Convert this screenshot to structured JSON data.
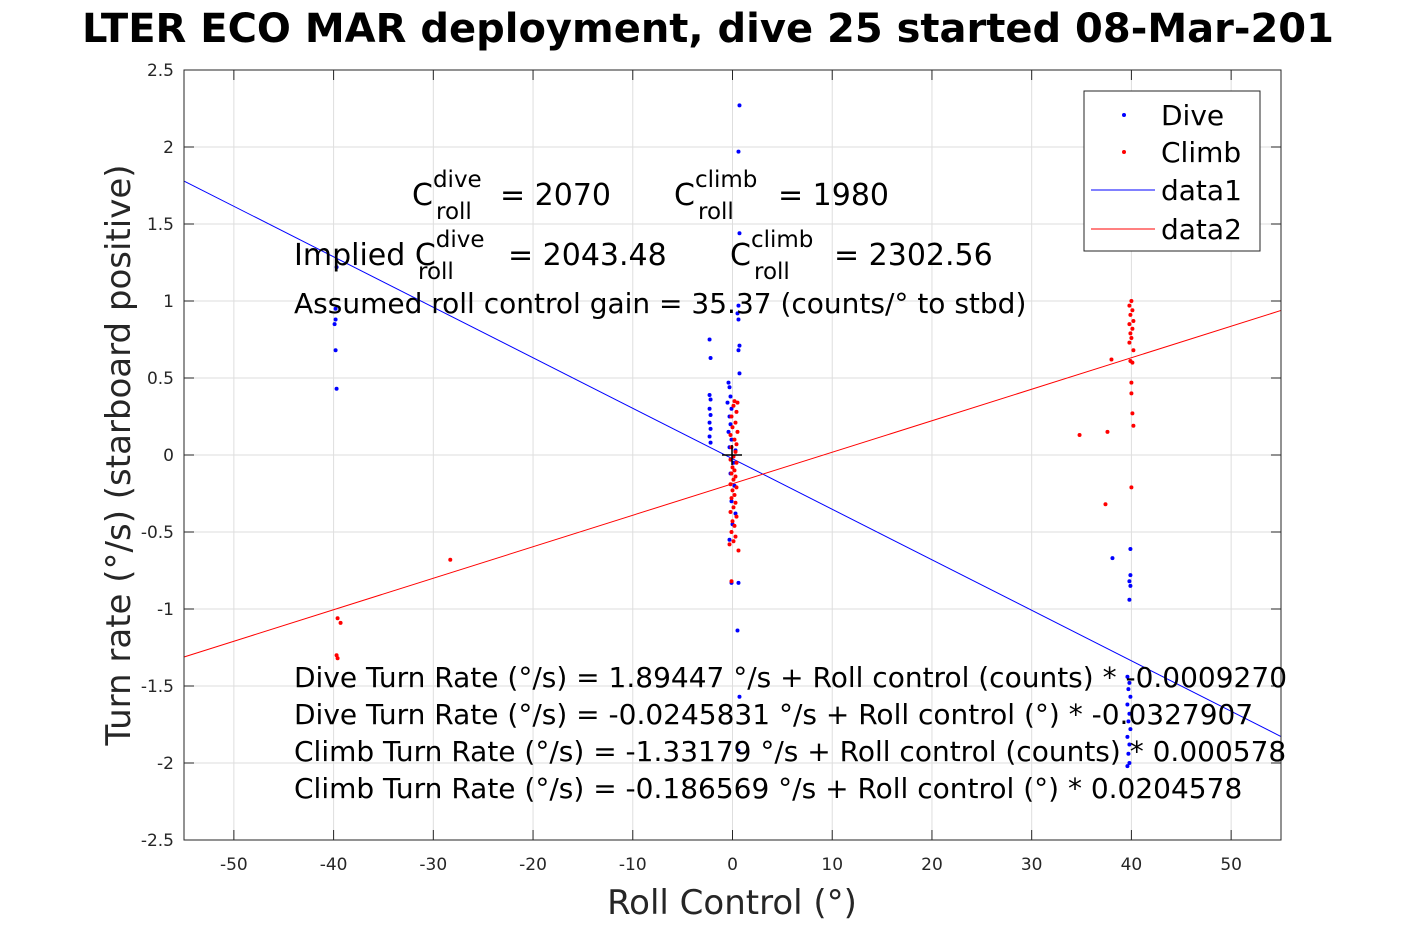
{
  "chart_data": {
    "type": "scatter",
    "title": "LTER ECO MAR deployment, dive 25 started 08-Mar-201",
    "xlabel": "Roll Control (°)",
    "ylabel": "Turn rate (°/s) (starboard positive)",
    "xlim": [
      -55,
      55
    ],
    "ylim": [
      -2.5,
      2.5
    ],
    "xticks": [
      -50,
      -40,
      -30,
      -20,
      -10,
      0,
      10,
      20,
      30,
      40,
      50
    ],
    "yticks": [
      -2.5,
      -2,
      -1.5,
      -1,
      -0.5,
      0,
      0.5,
      1,
      1.5,
      2,
      2.5
    ],
    "xtick_labels": [
      "-50",
      "-40",
      "-30",
      "-20",
      "-10",
      "0",
      "10",
      "20",
      "30",
      "40",
      "50"
    ],
    "ytick_labels": [
      "-2.5",
      "-2",
      "-1.5",
      "-1",
      "-0.5",
      "0",
      "0.5",
      "1",
      "1.5",
      "2",
      "2.5"
    ],
    "grid": true,
    "legend_position": "top-right",
    "legend": [
      "Dive",
      "Climb",
      "data1",
      "data2"
    ],
    "colors": {
      "dive": "#0000ff",
      "climb": "#ff0000",
      "axes": "#262626",
      "grid": "#dedede"
    },
    "series": [
      {
        "name": "Dive",
        "kind": "points",
        "color": "#0000ff",
        "points": [
          [
            -39.7,
            1.22
          ],
          [
            -39.8,
            0.95
          ],
          [
            -39.8,
            0.88
          ],
          [
            -39.9,
            0.85
          ],
          [
            -39.8,
            0.68
          ],
          [
            -39.7,
            0.43
          ],
          [
            0.7,
            2.27
          ],
          [
            0.6,
            1.97
          ],
          [
            0.7,
            1.44
          ],
          [
            0.6,
            0.97
          ],
          [
            0.5,
            0.92
          ],
          [
            0.6,
            0.88
          ],
          [
            0.7,
            0.71
          ],
          [
            0.6,
            0.68
          ],
          [
            0.7,
            0.53
          ],
          [
            -2.3,
            0.75
          ],
          [
            -2.2,
            0.63
          ],
          [
            -2.3,
            0.39
          ],
          [
            -2.2,
            0.36
          ],
          [
            -2.3,
            0.3
          ],
          [
            -2.2,
            0.26
          ],
          [
            -2.3,
            0.21
          ],
          [
            -2.2,
            0.17
          ],
          [
            -2.3,
            0.12
          ],
          [
            -2.2,
            0.08
          ],
          [
            -0.4,
            0.47
          ],
          [
            -0.3,
            0.44
          ],
          [
            -0.2,
            0.38
          ],
          [
            -0.5,
            0.34
          ],
          [
            -0.1,
            0.3
          ],
          [
            -0.3,
            0.25
          ],
          [
            -0.2,
            0.2
          ],
          [
            -0.4,
            0.15
          ],
          [
            -0.1,
            0.1
          ],
          [
            -0.3,
            0.05
          ],
          [
            0.3,
            0.03
          ],
          [
            0.1,
            -0.05
          ],
          [
            -0.2,
            -0.12
          ],
          [
            0.2,
            -0.2
          ],
          [
            -0.1,
            -0.3
          ],
          [
            0.3,
            -0.38
          ],
          [
            0.0,
            -0.45
          ],
          [
            -0.3,
            -0.55
          ],
          [
            -0.1,
            -0.83
          ],
          [
            0.6,
            -0.83
          ],
          [
            0.5,
            -1.14
          ],
          [
            0.7,
            -1.57
          ],
          [
            0.6,
            -1.92
          ],
          [
            38.1,
            -0.67
          ],
          [
            39.9,
            -0.61
          ],
          [
            39.9,
            -0.78
          ],
          [
            39.8,
            -0.82
          ],
          [
            39.9,
            -0.85
          ],
          [
            39.8,
            -0.94
          ],
          [
            39.6,
            -1.44
          ],
          [
            39.8,
            -1.48
          ],
          [
            39.7,
            -1.52
          ],
          [
            39.9,
            -1.57
          ],
          [
            39.6,
            -1.62
          ],
          [
            39.8,
            -1.68
          ],
          [
            39.7,
            -1.73
          ],
          [
            39.9,
            -1.78
          ],
          [
            39.6,
            -1.83
          ],
          [
            39.8,
            -1.88
          ],
          [
            39.7,
            -1.94
          ],
          [
            39.8,
            -2.0
          ],
          [
            39.6,
            -2.02
          ]
        ]
      },
      {
        "name": "Climb",
        "kind": "points",
        "color": "#ff0000",
        "points": [
          [
            -39.6,
            -1.06
          ],
          [
            -39.3,
            -1.09
          ],
          [
            -39.7,
            -1.3
          ],
          [
            -39.6,
            -1.32
          ],
          [
            -28.3,
            -0.68
          ],
          [
            0.2,
            0.35
          ],
          [
            0.5,
            0.34
          ],
          [
            0.1,
            0.32
          ],
          [
            0.4,
            0.28
          ],
          [
            -0.1,
            0.25
          ],
          [
            0.3,
            0.21
          ],
          [
            0.0,
            0.18
          ],
          [
            0.5,
            0.15
          ],
          [
            -0.2,
            0.13
          ],
          [
            0.2,
            0.1
          ],
          [
            0.4,
            0.07
          ],
          [
            -0.1,
            0.05
          ],
          [
            0.3,
            0.02
          ],
          [
            0.1,
            -0.01
          ],
          [
            -0.2,
            -0.03
          ],
          [
            0.4,
            -0.05
          ],
          [
            0.0,
            -0.08
          ],
          [
            0.2,
            -0.1
          ],
          [
            -0.1,
            -0.12
          ],
          [
            0.3,
            -0.14
          ],
          [
            0.1,
            -0.16
          ],
          [
            -0.2,
            -0.19
          ],
          [
            0.4,
            -0.21
          ],
          [
            0.0,
            -0.23
          ],
          [
            0.2,
            -0.26
          ],
          [
            -0.1,
            -0.28
          ],
          [
            0.3,
            -0.31
          ],
          [
            0.1,
            -0.34
          ],
          [
            -0.2,
            -0.37
          ],
          [
            0.4,
            -0.4
          ],
          [
            0.0,
            -0.43
          ],
          [
            0.2,
            -0.46
          ],
          [
            -0.1,
            -0.5
          ],
          [
            0.3,
            -0.53
          ],
          [
            0.1,
            -0.56
          ],
          [
            -0.3,
            -0.58
          ],
          [
            0.6,
            -0.62
          ],
          [
            -0.1,
            -0.82
          ],
          [
            40.0,
            1.0
          ],
          [
            39.8,
            0.97
          ],
          [
            40.1,
            0.94
          ],
          [
            39.9,
            0.91
          ],
          [
            40.2,
            0.87
          ],
          [
            39.8,
            0.85
          ],
          [
            40.1,
            0.82
          ],
          [
            39.9,
            0.79
          ],
          [
            40.0,
            0.76
          ],
          [
            39.8,
            0.73
          ],
          [
            40.2,
            0.68
          ],
          [
            38.0,
            0.62
          ],
          [
            39.9,
            0.61
          ],
          [
            40.1,
            0.6
          ],
          [
            40.0,
            0.47
          ],
          [
            40.0,
            0.4
          ],
          [
            40.1,
            0.27
          ],
          [
            40.2,
            0.19
          ],
          [
            34.8,
            0.13
          ],
          [
            37.6,
            0.15
          ],
          [
            40.0,
            -0.21
          ],
          [
            37.4,
            -0.32
          ]
        ]
      },
      {
        "name": "data1",
        "kind": "line",
        "color": "#0000ff",
        "slope": -0.0327907,
        "intercept": -0.0245831
      },
      {
        "name": "data2",
        "kind": "line",
        "color": "#ff0000",
        "slope": 0.0204578,
        "intercept": -0.186569
      }
    ],
    "annotations": {
      "c_prefix": "C",
      "roll_sub": "roll",
      "dive_sup": "dive",
      "climb_sup": "climb",
      "c_dive_value": "= 2070",
      "c_climb_value": "= 1980",
      "implied_prefix": "Implied C",
      "implied_dive_value": "= 2043.48",
      "implied_climb_value": "= 2302.56",
      "gain_text": "Assumed roll control gain = 35.37 (counts/° to stbd)",
      "eq1": "Dive Turn Rate (°/s) = 1.89447 °/s + Roll control (counts) * -0.0009270",
      "eq2": "Dive Turn Rate (°/s) = -0.0245831 °/s + Roll control (°) * -0.0327907",
      "eq3": "Climb Turn Rate (°/s) = -1.33179 °/s + Roll control (counts) * 0.000578",
      "eq4": "Climb Turn Rate (°/s) = -0.186569 °/s + Roll control (°) * 0.0204578"
    }
  }
}
